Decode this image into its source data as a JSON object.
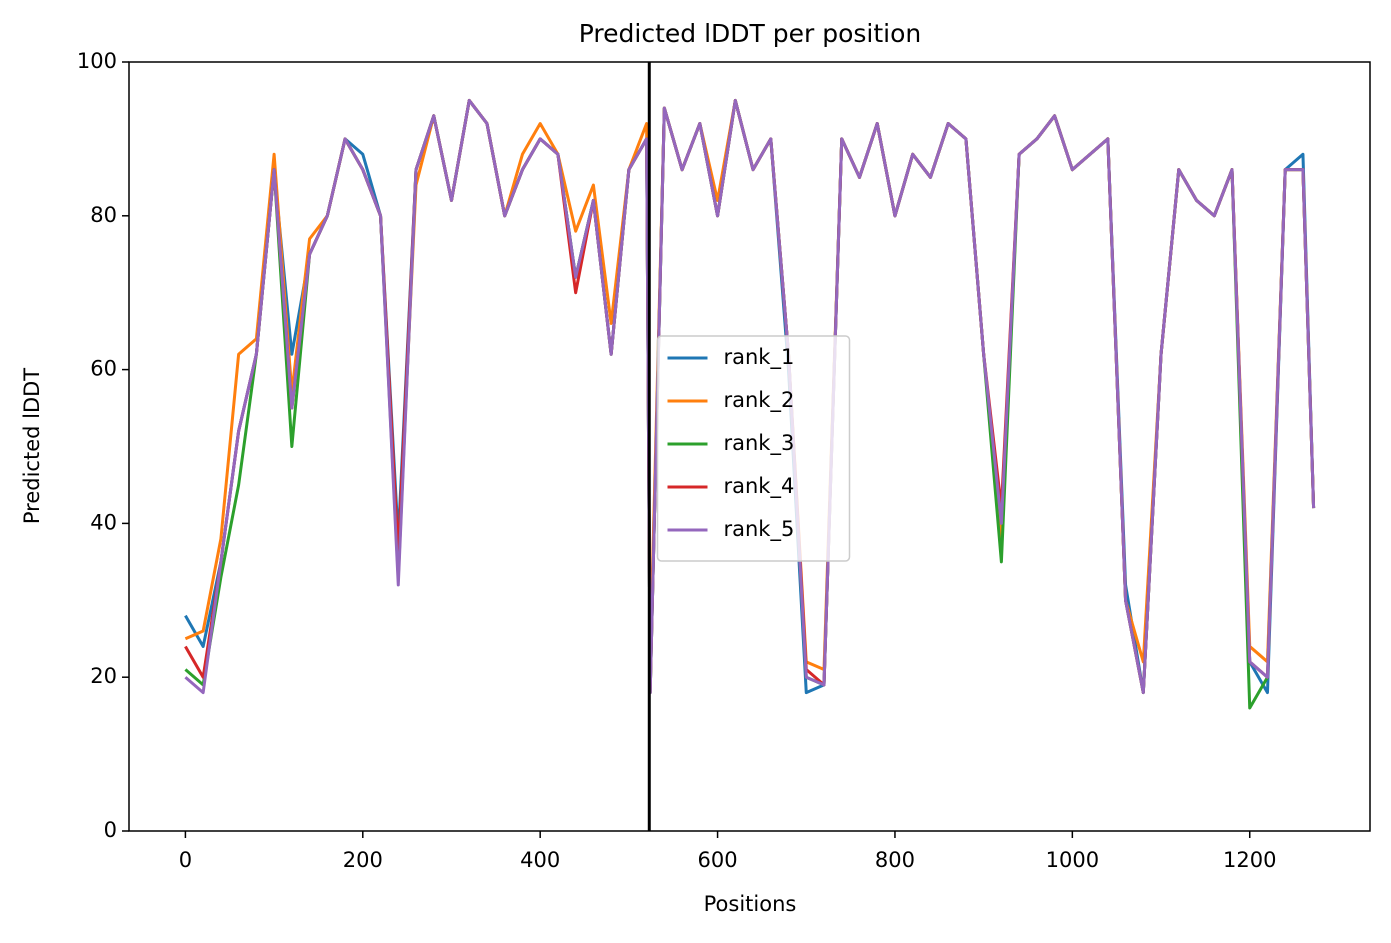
{
  "chart_data": {
    "type": "line",
    "title": "Predicted lDDT per position",
    "xlabel": "Positions",
    "ylabel": "Predicted lDDT",
    "x": [
      0,
      20,
      40,
      60,
      80,
      100,
      120,
      140,
      160,
      180,
      200,
      220,
      240,
      260,
      280,
      300,
      320,
      340,
      360,
      380,
      400,
      420,
      440,
      460,
      480,
      500,
      520,
      524,
      540,
      560,
      580,
      600,
      620,
      640,
      660,
      680,
      700,
      720,
      740,
      760,
      780,
      800,
      820,
      840,
      860,
      880,
      900,
      920,
      940,
      960,
      980,
      1000,
      1020,
      1040,
      1060,
      1080,
      1100,
      1120,
      1140,
      1160,
      1180,
      1200,
      1220,
      1240,
      1260,
      1272
    ],
    "series": [
      {
        "name": "rank_1",
        "color": "#1f77b4",
        "values": [
          28,
          24,
          35,
          52,
          62,
          86,
          62,
          75,
          80,
          90,
          88,
          80,
          38,
          86,
          93,
          82,
          95,
          92,
          80,
          86,
          90,
          88,
          72,
          82,
          62,
          86,
          90,
          18,
          94,
          86,
          92,
          80,
          95,
          86,
          90,
          60,
          18,
          19,
          90,
          85,
          92,
          80,
          88,
          85,
          92,
          90,
          62,
          40,
          88,
          90,
          93,
          86,
          88,
          90,
          32,
          18,
          62,
          86,
          82,
          80,
          86,
          22,
          18,
          86,
          88,
          42
        ]
      },
      {
        "name": "rank_2",
        "color": "#ff7f0e",
        "values": [
          25,
          26,
          38,
          62,
          64,
          88,
          57,
          77,
          80,
          90,
          86,
          80,
          35,
          84,
          93,
          82,
          95,
          92,
          80,
          88,
          92,
          88,
          78,
          84,
          66,
          86,
          92,
          22,
          94,
          86,
          92,
          82,
          95,
          86,
          90,
          62,
          22,
          21,
          90,
          85,
          92,
          80,
          88,
          85,
          92,
          90,
          62,
          38,
          88,
          90,
          93,
          86,
          88,
          90,
          30,
          22,
          62,
          86,
          82,
          80,
          86,
          24,
          22,
          86,
          86,
          42
        ]
      },
      {
        "name": "rank_3",
        "color": "#2ca02c",
        "values": [
          21,
          19,
          33,
          45,
          62,
          86,
          50,
          75,
          80,
          90,
          86,
          80,
          33,
          86,
          93,
          82,
          95,
          92,
          80,
          86,
          90,
          88,
          72,
          82,
          62,
          86,
          90,
          18,
          94,
          86,
          92,
          80,
          95,
          86,
          90,
          62,
          20,
          19,
          90,
          85,
          92,
          80,
          88,
          85,
          92,
          90,
          62,
          35,
          88,
          90,
          93,
          86,
          88,
          90,
          30,
          18,
          62,
          86,
          82,
          80,
          86,
          16,
          20,
          86,
          86,
          42
        ]
      },
      {
        "name": "rank_4",
        "color": "#d62728",
        "values": [
          24,
          20,
          35,
          52,
          62,
          86,
          55,
          75,
          80,
          90,
          86,
          80,
          36,
          86,
          93,
          82,
          95,
          92,
          80,
          86,
          90,
          88,
          70,
          82,
          62,
          86,
          90,
          18,
          94,
          86,
          92,
          80,
          95,
          86,
          90,
          62,
          21,
          19,
          90,
          85,
          92,
          80,
          88,
          85,
          92,
          90,
          62,
          42,
          88,
          90,
          93,
          86,
          88,
          90,
          30,
          18,
          62,
          86,
          82,
          80,
          86,
          22,
          20,
          86,
          86,
          42
        ]
      },
      {
        "name": "rank_5",
        "color": "#9467bd",
        "values": [
          20,
          18,
          35,
          52,
          62,
          86,
          55,
          75,
          80,
          90,
          86,
          80,
          32,
          86,
          93,
          82,
          95,
          92,
          80,
          86,
          90,
          88,
          72,
          82,
          62,
          86,
          90,
          18,
          94,
          86,
          92,
          80,
          95,
          86,
          90,
          62,
          20,
          19,
          90,
          85,
          92,
          80,
          88,
          85,
          92,
          90,
          62,
          40,
          88,
          90,
          93,
          86,
          88,
          90,
          30,
          18,
          62,
          86,
          82,
          80,
          86,
          22,
          20,
          86,
          86,
          42
        ]
      }
    ],
    "vline": 523,
    "xlim": [
      -63.6,
      1335.6
    ],
    "ylim": [
      0,
      100
    ],
    "xticks": [
      0,
      200,
      400,
      600,
      800,
      1000,
      1200
    ],
    "yticks": [
      0,
      20,
      40,
      60,
      80,
      100
    ],
    "legend": "center"
  }
}
